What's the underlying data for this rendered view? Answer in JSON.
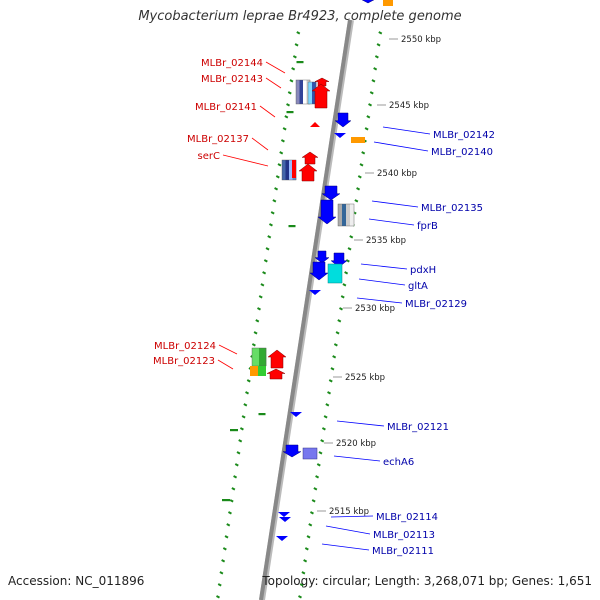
{
  "title": "Mycobacterium leprae Br4923, complete genome",
  "footer": {
    "accession": "Accession: NC_011896",
    "topology": "Topology: circular; Length: 3,268,071 bp; Genes: 1,651"
  },
  "colors": {
    "forward": "#ff0000",
    "reverse": "#0000ff",
    "label_forward": "#cc0000",
    "label_reverse": "#0000aa",
    "backbone": "#888888",
    "ticks": "#1a8a1a",
    "orange": "#ff9900",
    "cyan": "#00dddd",
    "green": "#33cc33",
    "purple": "#7777ee"
  },
  "ruler": {
    "unit": "kbp",
    "markers": [
      {
        "kbp": 2550,
        "label": "2550 kbp"
      },
      {
        "kbp": 2545,
        "label": "2545 kbp"
      },
      {
        "kbp": 2540,
        "label": "2540 kbp"
      },
      {
        "kbp": 2535,
        "label": "2535 kbp"
      },
      {
        "kbp": 2530,
        "label": "2530 kbp"
      },
      {
        "kbp": 2525,
        "label": "2525 kbp"
      },
      {
        "kbp": 2520,
        "label": "2520 kbp"
      },
      {
        "kbp": 2515,
        "label": "2515 kbp"
      }
    ]
  },
  "genes_forward": [
    {
      "name": "MLBr_02144"
    },
    {
      "name": "MLBr_02143"
    },
    {
      "name": "MLBr_02141"
    },
    {
      "name": "MLBr_02137"
    },
    {
      "name": "serC"
    },
    {
      "name": "MLBr_02124"
    },
    {
      "name": "MLBr_02123"
    }
  ],
  "genes_reverse": [
    {
      "name": "MLBr_02142"
    },
    {
      "name": "MLBr_02140"
    },
    {
      "name": "MLBr_02135"
    },
    {
      "name": "fprB"
    },
    {
      "name": "pdxH"
    },
    {
      "name": "gltA"
    },
    {
      "name": "MLBr_02129"
    },
    {
      "name": "MLBr_02121"
    },
    {
      "name": "echA6"
    },
    {
      "name": "MLBr_02114"
    },
    {
      "name": "MLBr_02113"
    },
    {
      "name": "MLBr_02111"
    }
  ]
}
